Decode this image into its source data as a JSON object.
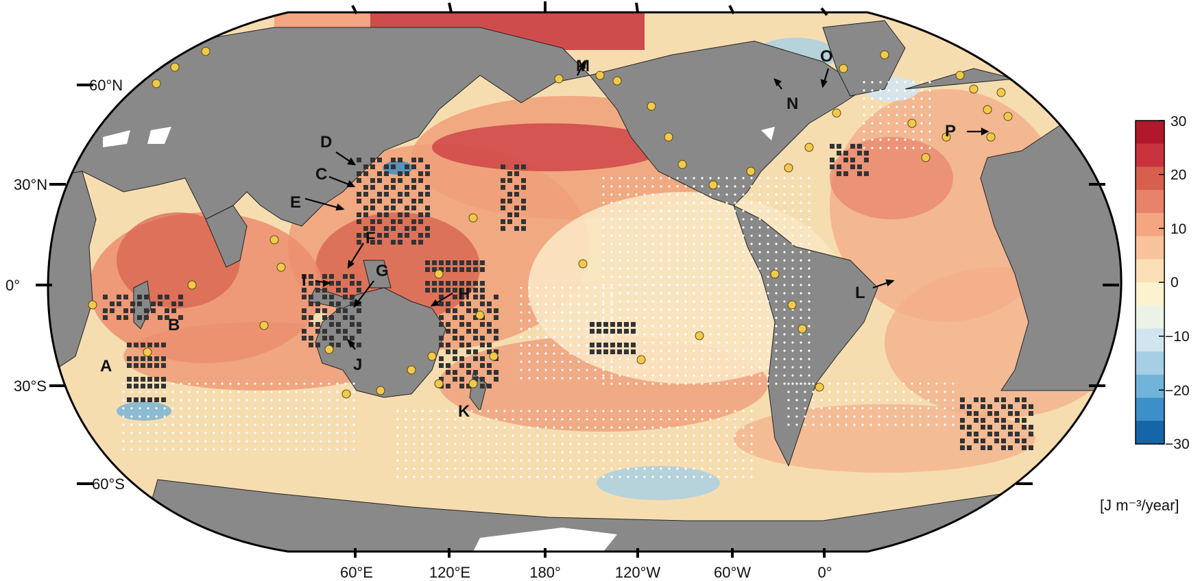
{
  "map": {
    "projection": "Robinson, Pacific-centred",
    "lat_labels": [
      "60°N",
      "30°N",
      "0°",
      "30°S",
      "60°S"
    ],
    "lon_labels": [
      "60°E",
      "120°E",
      "180°",
      "120°W",
      "60°W",
      "0°"
    ],
    "region_labels": [
      "A",
      "B",
      "C",
      "D",
      "E",
      "F",
      "G",
      "H",
      "I",
      "J",
      "K",
      "L",
      "M",
      "N",
      "O",
      "P"
    ],
    "colors": {
      "land": "#898989",
      "ice": "#ffffff",
      "ocean_base": "#f6ddb0",
      "warm": "#e07a5f",
      "hot": "#c8323c",
      "cool": "#b8dff0",
      "station": "#f2c94c",
      "mooring": "#333333"
    }
  },
  "colorbar": {
    "ticks": [
      "30",
      "20",
      "10",
      "0",
      "−10",
      "−20",
      "−30"
    ],
    "unit": "[J m⁻³/year]",
    "colors": [
      "#b2182b",
      "#c8323c",
      "#d6604d",
      "#e8826b",
      "#f4a582",
      "#f7c29c",
      "#fbe0b7",
      "#fdf2cf",
      "#eaf3e6",
      "#d1e5f0",
      "#a6cfe6",
      "#72b3da",
      "#3c8fc7",
      "#1665a8"
    ]
  }
}
